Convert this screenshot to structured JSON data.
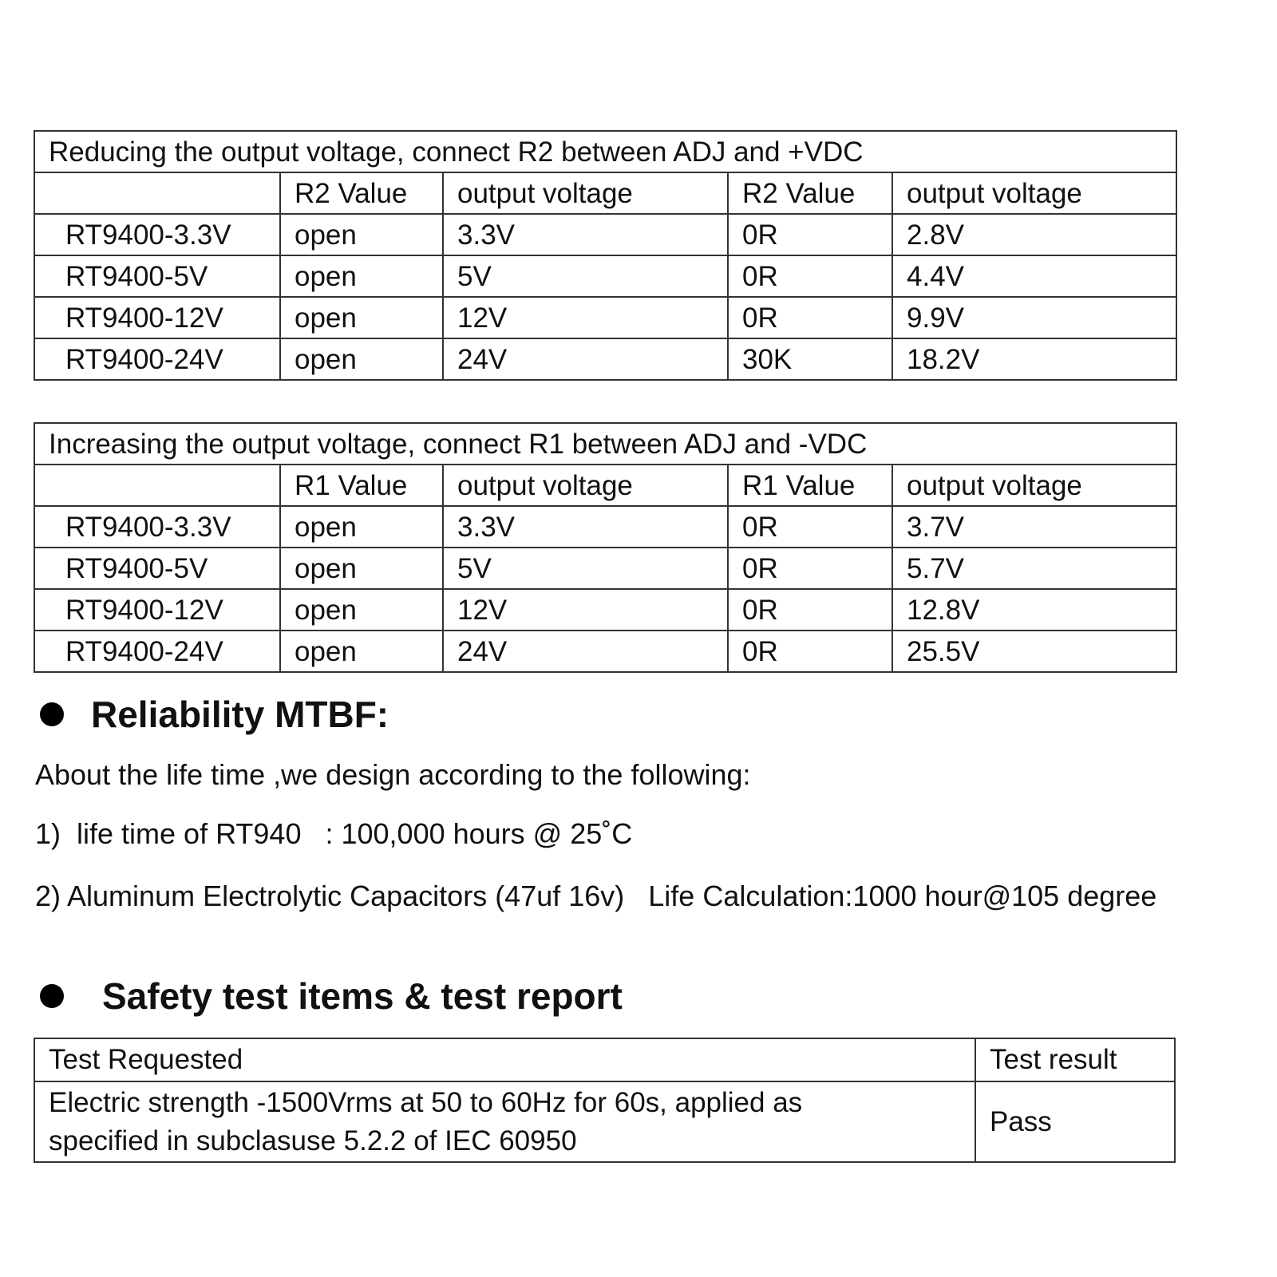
{
  "reduce_table": {
    "title": "Reducing the output voltage, connect R2 between ADJ and +VDC",
    "headers": [
      "",
      "R2 Value",
      "output voltage",
      "R2 Value",
      "output voltage"
    ],
    "rows": [
      [
        "RT9400-3.3V",
        "open",
        "3.3V",
        "0R",
        "2.8V"
      ],
      [
        "RT9400-5V",
        "open",
        "5V",
        "0R",
        "4.4V"
      ],
      [
        "RT9400-12V",
        "open",
        "12V",
        "0R",
        "9.9V"
      ],
      [
        "RT9400-24V",
        "open",
        "24V",
        "30K",
        "18.2V"
      ]
    ]
  },
  "increase_table": {
    "title": "Increasing the output voltage, connect R1 between ADJ and -VDC",
    "headers": [
      "",
      "R1 Value",
      "output voltage",
      "R1 Value",
      "output voltage"
    ],
    "rows": [
      [
        "RT9400-3.3V",
        "open",
        "3.3V",
        "0R",
        "3.7V"
      ],
      [
        "RT9400-5V",
        "open",
        "5V",
        "0R",
        "5.7V"
      ],
      [
        "RT9400-12V",
        "open",
        "12V",
        "0R",
        "12.8V"
      ],
      [
        "RT9400-24V",
        "open",
        "24V",
        "0R",
        "25.5V"
      ]
    ]
  },
  "reliability": {
    "heading": "Reliability MTBF:",
    "intro": "About the life time ,we design according to the following:",
    "item1": "1)  life time of RT940   : 100,000 hours @ 25˚C",
    "item2": "2) Aluminum Electrolytic Capacitors (47uf 16v)   Life Calculation:1000 hour@105 degree"
  },
  "safety": {
    "heading": "Safety test items & test report",
    "headers": [
      "Test Requested",
      "Test result"
    ],
    "row": {
      "test_line1": "Electric strength -1500Vrms at 50 to 60Hz for 60s, applied as",
      "test_line2": "specified in subclasuse 5.2.2 of IEC 60950",
      "result": "Pass"
    }
  }
}
